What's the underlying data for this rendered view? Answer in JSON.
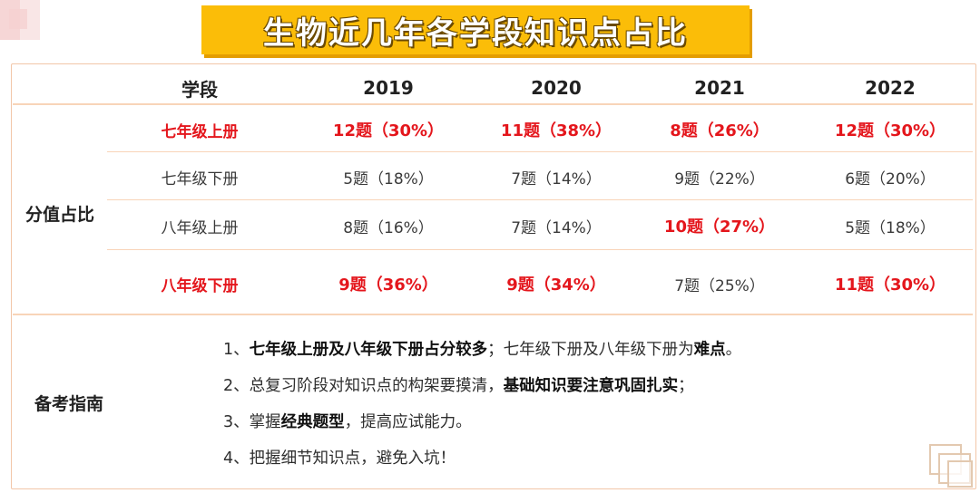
{
  "title": "生物近几年各学段知识点占比",
  "table": {
    "header": {
      "stage_label": "学段",
      "years": [
        "2019",
        "2020",
        "2021",
        "2022"
      ]
    },
    "section_label": "分值占比",
    "rows": [
      {
        "stage": "七年级上册",
        "highlight": true,
        "values": [
          {
            "text": "12题（30%）",
            "highlight": true
          },
          {
            "text": "11题（38%）",
            "highlight": true
          },
          {
            "text": "8题（26%）",
            "highlight": true
          },
          {
            "text": "12题（30%）",
            "highlight": true
          }
        ]
      },
      {
        "stage": "七年级下册",
        "highlight": false,
        "values": [
          {
            "text": "5题（18%）",
            "highlight": false
          },
          {
            "text": "7题（14%）",
            "highlight": false
          },
          {
            "text": "9题（22%）",
            "highlight": false
          },
          {
            "text": "6题（20%）",
            "highlight": false
          }
        ]
      },
      {
        "stage": "八年级上册",
        "highlight": false,
        "values": [
          {
            "text": "8题（16%）",
            "highlight": false
          },
          {
            "text": "7题（14%）",
            "highlight": false
          },
          {
            "text": "10题（27%）",
            "highlight": true
          },
          {
            "text": "5题（18%）",
            "highlight": false
          }
        ]
      },
      {
        "stage": "八年级下册",
        "highlight": true,
        "values": [
          {
            "text": "9题（36%）",
            "highlight": true
          },
          {
            "text": "9题（34%）",
            "highlight": true
          },
          {
            "text": "7题（25%）",
            "highlight": false
          },
          {
            "text": "11题（30%）",
            "highlight": true
          }
        ]
      }
    ]
  },
  "guide": {
    "label": "备考指南",
    "items": [
      {
        "num": "1、",
        "parts": [
          {
            "text": "七年级上册及八年级下册占分较多",
            "bold": true
          },
          {
            "text": "；七年级下册及八年级下册为",
            "bold": false
          },
          {
            "text": "难点",
            "bold": true
          },
          {
            "text": "。",
            "bold": false
          }
        ]
      },
      {
        "num": "2、",
        "parts": [
          {
            "text": "总复习阶段对知识点的构架要摸清，",
            "bold": false
          },
          {
            "text": "基础知识要注意巩固扎实",
            "bold": true
          },
          {
            "text": "；",
            "bold": false
          }
        ]
      },
      {
        "num": "3、",
        "parts": [
          {
            "text": "掌握",
            "bold": false
          },
          {
            "text": "经典题型",
            "bold": true
          },
          {
            "text": "，提高应试能力。",
            "bold": false
          }
        ]
      },
      {
        "num": "4、",
        "parts": [
          {
            "text": "把握细节知识点，避免入坑！",
            "bold": false
          }
        ]
      }
    ]
  },
  "colors": {
    "banner": "#fbbd08",
    "highlight": "#e4161c",
    "divider": "#f8d4b8"
  }
}
